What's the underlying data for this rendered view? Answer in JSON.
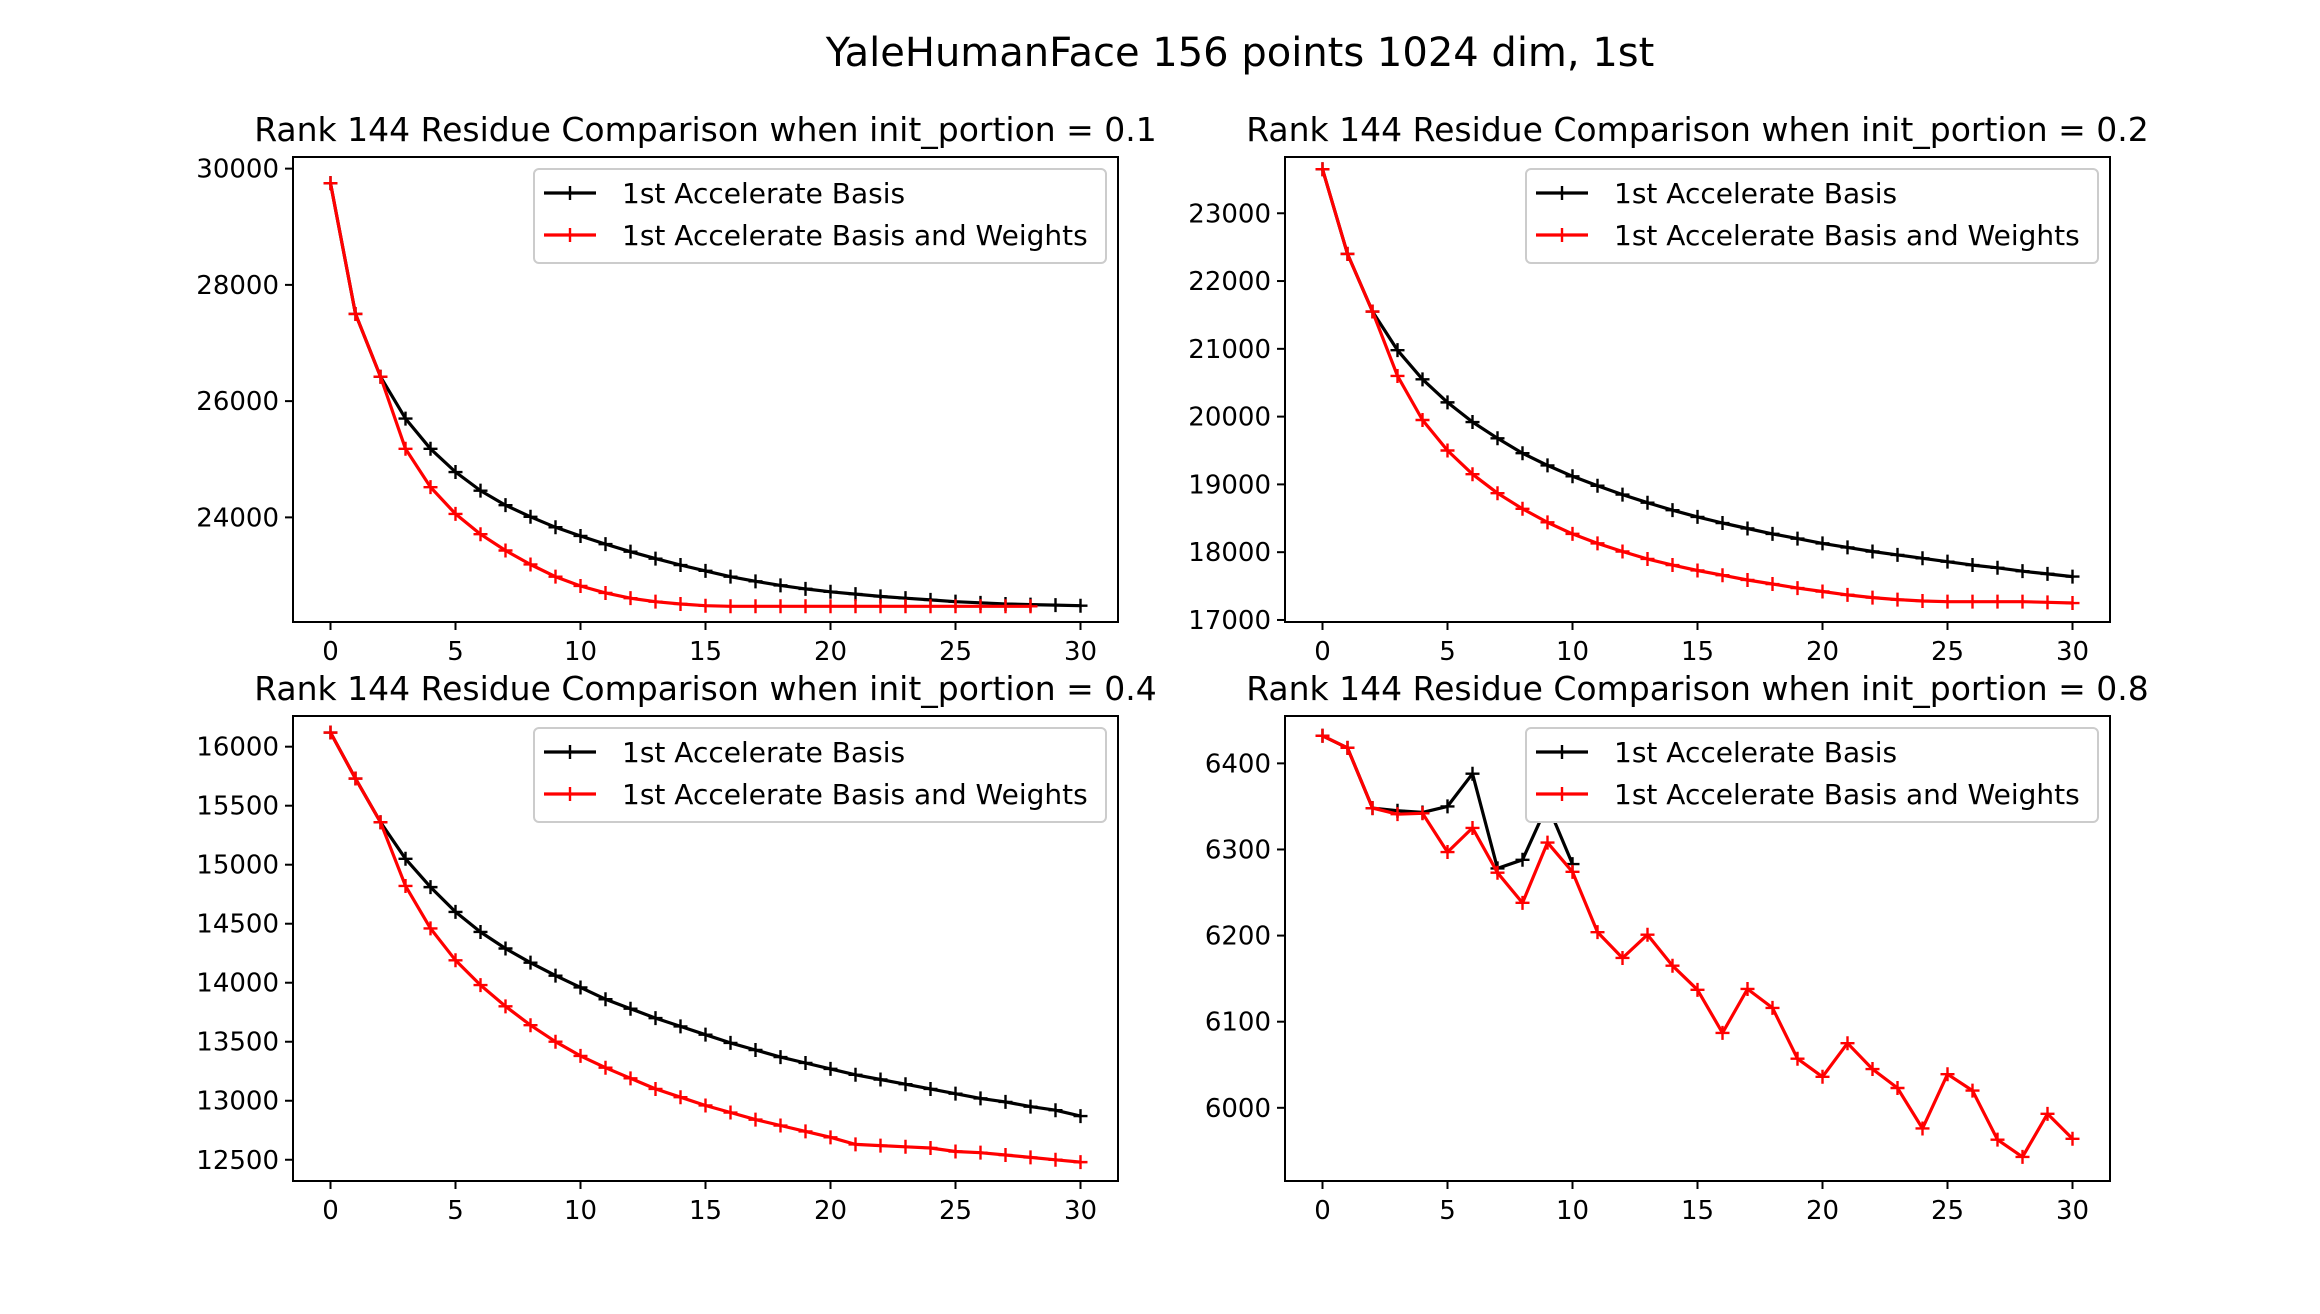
{
  "figure_title": "YaleHumanFace 156 points 1024 dim, 1st",
  "colors": {
    "basis": "#000000",
    "weights": "#ff0000"
  },
  "chart_data": [
    {
      "type": "line",
      "title": "Rank 144 Residue Comparison when init_portion = 0.1",
      "xlim": [
        -1.5,
        31.5
      ],
      "ylim": [
        22200,
        30200
      ],
      "xticks": [
        0,
        5,
        10,
        15,
        20,
        25,
        30
      ],
      "yticks": [
        24000,
        26000,
        28000,
        30000
      ],
      "xtick_labels": [
        "0",
        "5",
        "10",
        "15",
        "20",
        "25",
        "30"
      ],
      "ytick_labels": [
        "24000",
        "26000",
        "28000",
        "30000"
      ],
      "legend_position": "upper-right",
      "series": [
        {
          "name": "1st Accelerate Basis",
          "color": "#000000",
          "x": [
            0,
            1,
            2,
            3,
            4,
            5,
            6,
            7,
            8,
            9,
            10,
            11,
            12,
            13,
            14,
            15,
            16,
            17,
            18,
            19,
            20,
            21,
            22,
            23,
            24,
            25,
            26,
            27,
            28,
            29,
            30
          ],
          "y": [
            29750,
            27500,
            26420,
            25700,
            25180,
            24780,
            24460,
            24210,
            24010,
            23830,
            23680,
            23540,
            23410,
            23290,
            23180,
            23080,
            22980,
            22900,
            22830,
            22770,
            22720,
            22680,
            22640,
            22610,
            22580,
            22550,
            22530,
            22510,
            22500,
            22490,
            22480
          ]
        },
        {
          "name": "1st Accelerate Basis and Weights",
          "color": "#ff0000",
          "x": [
            0,
            1,
            2,
            3,
            4,
            5,
            6,
            7,
            8,
            9,
            10,
            11,
            12,
            13,
            14,
            15,
            16,
            17,
            18,
            19,
            20,
            21,
            22,
            23,
            24,
            25,
            26,
            27,
            28
          ],
          "y": [
            29750,
            27500,
            26420,
            25180,
            24520,
            24060,
            23710,
            23430,
            23190,
            22980,
            22820,
            22700,
            22610,
            22550,
            22510,
            22480,
            22470,
            22470,
            22470,
            22470,
            22470,
            22470,
            22470,
            22470,
            22470,
            22470,
            22470,
            22470,
            22470
          ]
        }
      ]
    },
    {
      "type": "line",
      "title": "Rank 144 Residue Comparison when init_portion = 0.2",
      "xlim": [
        -1.5,
        31.5
      ],
      "ylim": [
        16970,
        23830
      ],
      "xticks": [
        0,
        5,
        10,
        15,
        20,
        25,
        30
      ],
      "yticks": [
        17000,
        18000,
        19000,
        20000,
        21000,
        22000,
        23000
      ],
      "xtick_labels": [
        "0",
        "5",
        "10",
        "15",
        "20",
        "25",
        "30"
      ],
      "ytick_labels": [
        "17000",
        "18000",
        "19000",
        "20000",
        "21000",
        "22000",
        "23000"
      ],
      "legend_position": "upper-right",
      "series": [
        {
          "name": "1st Accelerate Basis",
          "color": "#000000",
          "x": [
            0,
            1,
            2,
            3,
            4,
            5,
            6,
            7,
            8,
            9,
            10,
            11,
            12,
            13,
            14,
            15,
            16,
            17,
            18,
            19,
            20,
            21,
            22,
            23,
            24,
            25,
            26,
            27,
            28,
            29,
            30
          ],
          "y": [
            23650,
            22400,
            21550,
            20980,
            20550,
            20210,
            19920,
            19680,
            19460,
            19280,
            19120,
            18980,
            18850,
            18730,
            18620,
            18520,
            18430,
            18350,
            18270,
            18200,
            18130,
            18070,
            18010,
            17960,
            17910,
            17860,
            17810,
            17770,
            17720,
            17680,
            17640
          ]
        },
        {
          "name": "1st Accelerate Basis and Weights",
          "color": "#ff0000",
          "x": [
            0,
            1,
            2,
            3,
            4,
            5,
            6,
            7,
            8,
            9,
            10,
            11,
            12,
            13,
            14,
            15,
            16,
            17,
            18,
            19,
            20,
            21,
            22,
            23,
            24,
            25,
            26,
            27,
            28,
            29,
            30
          ],
          "y": [
            23650,
            22400,
            21550,
            20600,
            19950,
            19500,
            19150,
            18870,
            18640,
            18440,
            18270,
            18130,
            18010,
            17900,
            17810,
            17730,
            17660,
            17590,
            17530,
            17470,
            17420,
            17370,
            17330,
            17300,
            17280,
            17270,
            17270,
            17270,
            17270,
            17260,
            17250
          ]
        }
      ]
    },
    {
      "type": "line",
      "title": "Rank 144 Residue Comparison when init_portion = 0.4",
      "xlim": [
        -1.5,
        31.5
      ],
      "ylim": [
        12320,
        16260
      ],
      "xticks": [
        0,
        5,
        10,
        15,
        20,
        25,
        30
      ],
      "yticks": [
        12500,
        13000,
        13500,
        14000,
        14500,
        15000,
        15500,
        16000
      ],
      "xtick_labels": [
        "0",
        "5",
        "10",
        "15",
        "20",
        "25",
        "30"
      ],
      "ytick_labels": [
        "12500",
        "13000",
        "13500",
        "14000",
        "14500",
        "15000",
        "15500",
        "16000"
      ],
      "legend_position": "upper-right",
      "series": [
        {
          "name": "1st Accelerate Basis",
          "color": "#000000",
          "x": [
            0,
            1,
            2,
            3,
            4,
            5,
            6,
            7,
            8,
            9,
            10,
            11,
            12,
            13,
            14,
            15,
            16,
            17,
            18,
            19,
            20,
            21,
            22,
            23,
            24,
            25,
            26,
            27,
            28,
            29,
            30
          ],
          "y": [
            16120,
            15730,
            15360,
            15050,
            14810,
            14600,
            14430,
            14290,
            14170,
            14060,
            13960,
            13860,
            13780,
            13700,
            13630,
            13560,
            13490,
            13430,
            13370,
            13320,
            13270,
            13220,
            13180,
            13140,
            13100,
            13060,
            13020,
            12990,
            12950,
            12920,
            12870
          ]
        },
        {
          "name": "1st Accelerate Basis and Weights",
          "color": "#ff0000",
          "x": [
            0,
            1,
            2,
            3,
            4,
            5,
            6,
            7,
            8,
            9,
            10,
            11,
            12,
            13,
            14,
            15,
            16,
            17,
            18,
            19,
            20,
            21,
            22,
            23,
            24,
            25,
            26,
            27,
            28,
            29,
            30
          ],
          "y": [
            16120,
            15730,
            15360,
            14820,
            14460,
            14190,
            13980,
            13800,
            13640,
            13500,
            13380,
            13280,
            13190,
            13100,
            13030,
            12960,
            12900,
            12840,
            12790,
            12740,
            12690,
            12630,
            12620,
            12610,
            12600,
            12570,
            12560,
            12540,
            12520,
            12500,
            12480
          ]
        }
      ]
    },
    {
      "type": "line",
      "title": "Rank 144 Residue Comparison when init_portion = 0.8",
      "xlim": [
        -1.5,
        31.5
      ],
      "ylim": [
        5915,
        6455
      ],
      "xticks": [
        0,
        5,
        10,
        15,
        20,
        25,
        30
      ],
      "yticks": [
        6000,
        6100,
        6200,
        6300,
        6400
      ],
      "xtick_labels": [
        "0",
        "5",
        "10",
        "15",
        "20",
        "25",
        "30"
      ],
      "ytick_labels": [
        "6000",
        "6100",
        "6200",
        "6300",
        "6400"
      ],
      "legend_position": "upper-right",
      "series": [
        {
          "name": "1st Accelerate Basis",
          "color": "#000000",
          "x": [
            0,
            1,
            2,
            3,
            4,
            5,
            6,
            7,
            8,
            9,
            10
          ],
          "y": [
            6432,
            6418,
            6348,
            6345,
            6343,
            6350,
            6388,
            6278,
            6288,
            6352,
            6283
          ]
        },
        {
          "name": "1st Accelerate Basis and Weights",
          "color": "#ff0000",
          "x": [
            0,
            1,
            2,
            3,
            4,
            5,
            6,
            7,
            8,
            9,
            10,
            11,
            12,
            13,
            14,
            15,
            16,
            17,
            18,
            19,
            20,
            21,
            22,
            23,
            24,
            25,
            26,
            27,
            28,
            29,
            30
          ],
          "y": [
            6432,
            6418,
            6348,
            6341,
            6342,
            6297,
            6325,
            6273,
            6238,
            6308,
            6274,
            6204,
            6174,
            6201,
            6165,
            6137,
            6087,
            6138,
            6116,
            6057,
            6036,
            6075,
            6045,
            6023,
            5976,
            6039,
            6020,
            5963,
            5943,
            5993,
            5964
          ]
        }
      ]
    }
  ]
}
